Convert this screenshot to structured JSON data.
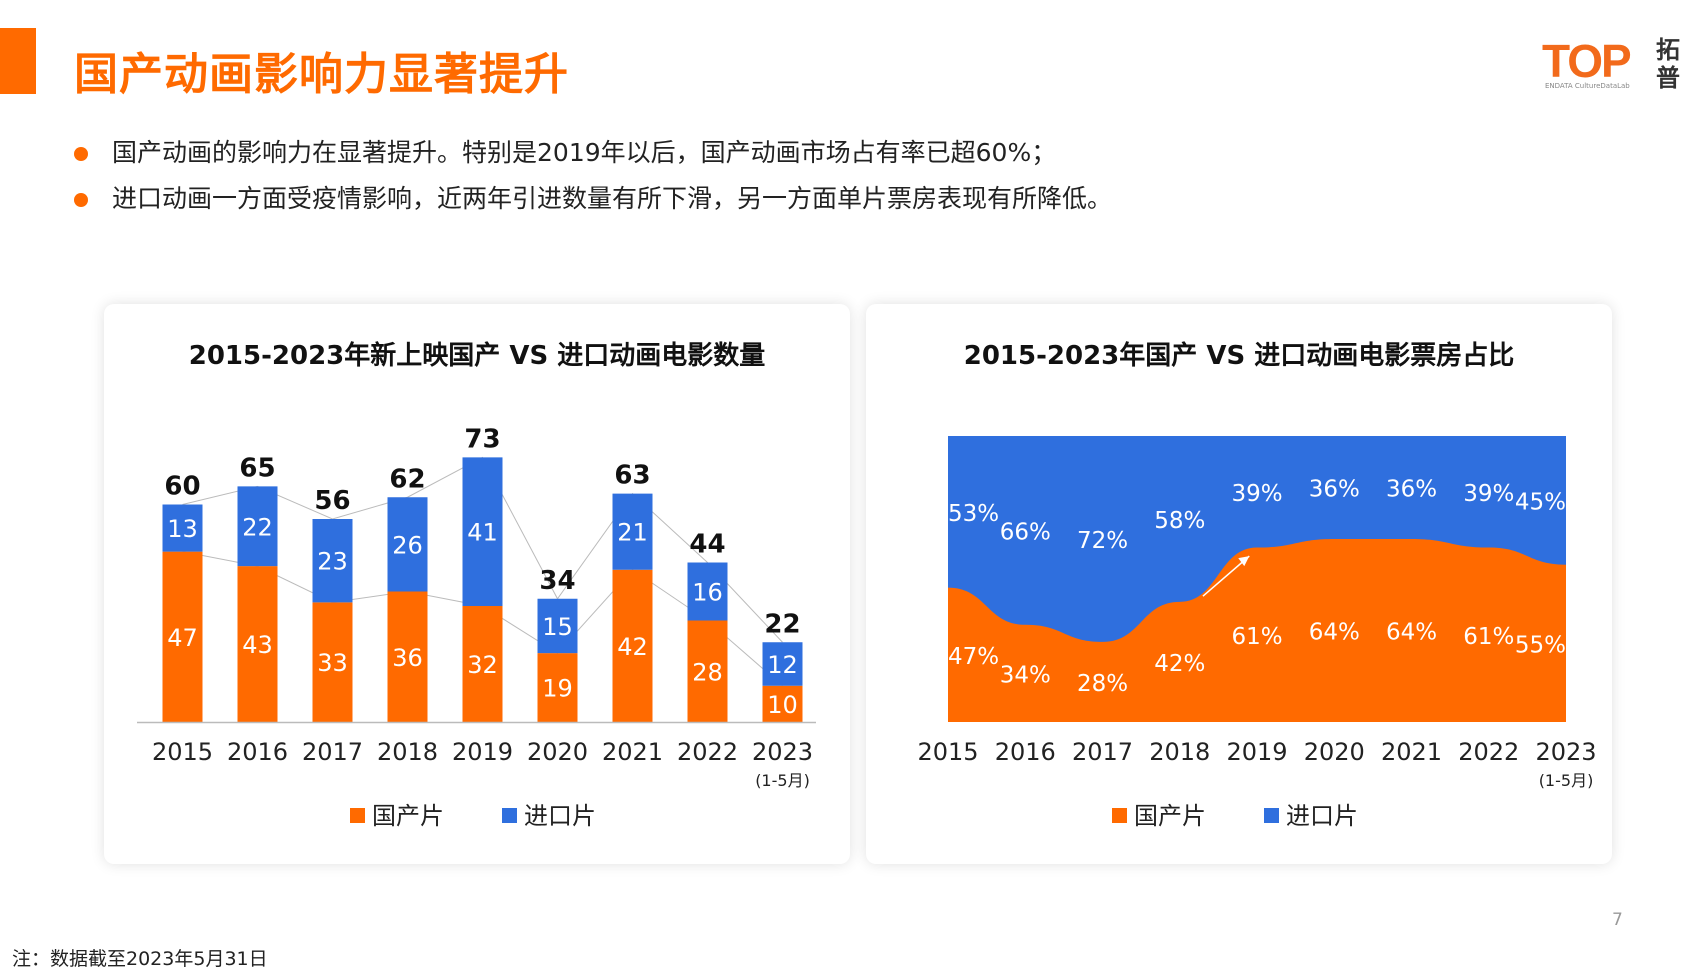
{
  "header": {
    "title": "国产动画影响力显著提升",
    "logo_text": "TOP",
    "logo_cn": "拓普",
    "logo_sub": "ENDATA  CultureDataLab"
  },
  "bullets": [
    "国产动画的影响力在显著提升。特别是2019年以后，国产动画市场占有率已超60%；",
    "进口动画一方面受疫情影响，近两年引进数量有所下滑，另一方面单片票房表现有所降低。"
  ],
  "colors": {
    "accent": "#ff6a00",
    "domestic": "#ff6a00",
    "imported": "#2f6fde"
  },
  "footnote": "注：数据截至2023年5月31日",
  "page_number": "7",
  "chart_data": [
    {
      "type": "bar",
      "stacked": true,
      "title": "2015-2023年新上映国产 VS 进口动画电影数量",
      "categories": [
        "2015",
        "2016",
        "2017",
        "2018",
        "2019",
        "2020",
        "2021",
        "2022",
        "2023"
      ],
      "category_note": "(1-5月)",
      "series": [
        {
          "name": "国产片",
          "color": "#ff6a00",
          "values": [
            47,
            43,
            33,
            36,
            32,
            19,
            42,
            28,
            10
          ]
        },
        {
          "name": "进口片",
          "color": "#2f6fde",
          "values": [
            13,
            22,
            23,
            26,
            41,
            15,
            21,
            16,
            12
          ]
        }
      ],
      "totals": [
        60,
        65,
        56,
        62,
        73,
        34,
        63,
        44,
        22
      ],
      "ylim": [
        0,
        80
      ],
      "legend": "bottom",
      "grid": false
    },
    {
      "type": "area",
      "stacked": true,
      "percent": true,
      "title": "2015-2023年国产 VS 进口动画电影票房占比",
      "categories": [
        "2015",
        "2016",
        "2017",
        "2018",
        "2019",
        "2020",
        "2021",
        "2022",
        "2023"
      ],
      "category_note": "(1-5月)",
      "series": [
        {
          "name": "国产片",
          "color": "#ff6a00",
          "values": [
            47,
            34,
            28,
            42,
            61,
            64,
            64,
            61,
            55
          ]
        },
        {
          "name": "进口片",
          "color": "#2f6fde",
          "values": [
            53,
            66,
            72,
            58,
            39,
            36,
            36,
            39,
            45
          ]
        }
      ],
      "ylim": [
        0,
        100
      ],
      "legend": "bottom",
      "grid": false
    }
  ]
}
